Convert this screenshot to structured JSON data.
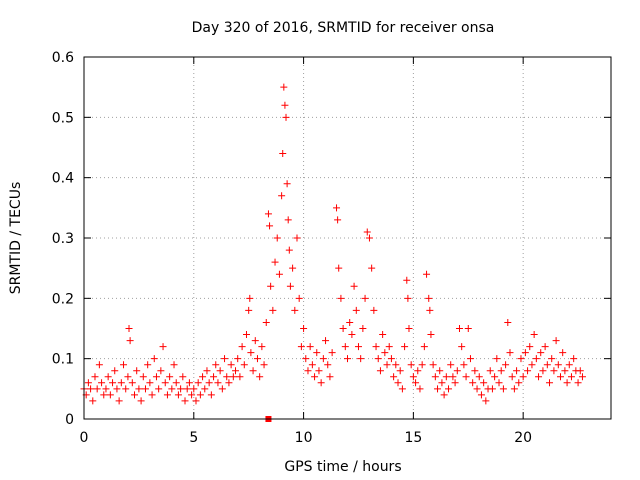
{
  "chart_data": {
    "type": "scatter",
    "title": "Day 320 of 2016, SRMTID for receiver onsa",
    "xlabel": "GPS time / hours",
    "ylabel": "SRMTID / TECUs",
    "xlim": [
      0,
      24
    ],
    "ylim": [
      0,
      0.6
    ],
    "xticks": [
      0,
      5,
      10,
      15,
      20
    ],
    "yticks": [
      0,
      0.1,
      0.2,
      0.3,
      0.4,
      0.5,
      0.6
    ],
    "xtick_labels": [
      "0",
      "5",
      "10",
      "15",
      "20"
    ],
    "ytick_labels": [
      "0",
      "0.1",
      "0.2",
      "0.3",
      "0.4",
      "0.5",
      "0.6"
    ],
    "grid": true,
    "marker": "+",
    "color": "#ff0000",
    "series": [
      {
        "name": "SRMTID",
        "points": [
          [
            0.0,
            0.05
          ],
          [
            0.1,
            0.04
          ],
          [
            0.2,
            0.06
          ],
          [
            0.3,
            0.05
          ],
          [
            0.4,
            0.03
          ],
          [
            0.5,
            0.07
          ],
          [
            0.6,
            0.05
          ],
          [
            0.7,
            0.09
          ],
          [
            0.8,
            0.06
          ],
          [
            0.9,
            0.04
          ],
          [
            1.0,
            0.05
          ],
          [
            1.1,
            0.07
          ],
          [
            1.2,
            0.04
          ],
          [
            1.3,
            0.06
          ],
          [
            1.4,
            0.08
          ],
          [
            1.5,
            0.05
          ],
          [
            1.6,
            0.03
          ],
          [
            1.7,
            0.06
          ],
          [
            1.8,
            0.09
          ],
          [
            1.9,
            0.05
          ],
          [
            2.0,
            0.07
          ],
          [
            2.05,
            0.15
          ],
          [
            2.1,
            0.13
          ],
          [
            2.2,
            0.06
          ],
          [
            2.3,
            0.04
          ],
          [
            2.4,
            0.08
          ],
          [
            2.5,
            0.05
          ],
          [
            2.6,
            0.03
          ],
          [
            2.7,
            0.07
          ],
          [
            2.8,
            0.05
          ],
          [
            2.9,
            0.09
          ],
          [
            3.0,
            0.06
          ],
          [
            3.1,
            0.04
          ],
          [
            3.2,
            0.1
          ],
          [
            3.3,
            0.07
          ],
          [
            3.4,
            0.05
          ],
          [
            3.5,
            0.08
          ],
          [
            3.6,
            0.12
          ],
          [
            3.7,
            0.06
          ],
          [
            3.8,
            0.04
          ],
          [
            3.9,
            0.07
          ],
          [
            4.0,
            0.05
          ],
          [
            4.1,
            0.09
          ],
          [
            4.2,
            0.06
          ],
          [
            4.3,
            0.04
          ],
          [
            4.4,
            0.05
          ],
          [
            4.5,
            0.07
          ],
          [
            4.6,
            0.03
          ],
          [
            4.7,
            0.05
          ],
          [
            4.8,
            0.06
          ],
          [
            4.9,
            0.04
          ],
          [
            5.0,
            0.05
          ],
          [
            5.1,
            0.03
          ],
          [
            5.2,
            0.06
          ],
          [
            5.3,
            0.04
          ],
          [
            5.4,
            0.07
          ],
          [
            5.5,
            0.05
          ],
          [
            5.6,
            0.08
          ],
          [
            5.7,
            0.06
          ],
          [
            5.8,
            0.04
          ],
          [
            5.9,
            0.07
          ],
          [
            6.0,
            0.09
          ],
          [
            6.1,
            0.06
          ],
          [
            6.2,
            0.08
          ],
          [
            6.3,
            0.05
          ],
          [
            6.4,
            0.1
          ],
          [
            6.5,
            0.07
          ],
          [
            6.6,
            0.06
          ],
          [
            6.7,
            0.09
          ],
          [
            6.8,
            0.07
          ],
          [
            6.9,
            0.08
          ],
          [
            7.0,
            0.1
          ],
          [
            7.1,
            0.07
          ],
          [
            7.2,
            0.12
          ],
          [
            7.3,
            0.09
          ],
          [
            7.4,
            0.14
          ],
          [
            7.5,
            0.18
          ],
          [
            7.55,
            0.2
          ],
          [
            7.6,
            0.11
          ],
          [
            7.7,
            0.08
          ],
          [
            7.8,
            0.13
          ],
          [
            7.9,
            0.1
          ],
          [
            8.0,
            0.07
          ],
          [
            8.1,
            0.12
          ],
          [
            8.2,
            0.09
          ],
          [
            8.3,
            0.16
          ],
          [
            8.4,
            0.34
          ],
          [
            8.45,
            0.32
          ],
          [
            8.5,
            0.22
          ],
          [
            8.6,
            0.18
          ],
          [
            8.7,
            0.26
          ],
          [
            8.8,
            0.3
          ],
          [
            8.9,
            0.24
          ],
          [
            9.0,
            0.37
          ],
          [
            9.05,
            0.44
          ],
          [
            9.1,
            0.55
          ],
          [
            9.15,
            0.52
          ],
          [
            9.2,
            0.5
          ],
          [
            9.25,
            0.39
          ],
          [
            9.3,
            0.33
          ],
          [
            9.35,
            0.28
          ],
          [
            9.4,
            0.22
          ],
          [
            9.5,
            0.25
          ],
          [
            9.6,
            0.18
          ],
          [
            9.7,
            0.3
          ],
          [
            9.8,
            0.2
          ],
          [
            9.9,
            0.12
          ],
          [
            10.0,
            0.15
          ],
          [
            10.1,
            0.1
          ],
          [
            10.2,
            0.08
          ],
          [
            10.3,
            0.12
          ],
          [
            10.4,
            0.09
          ],
          [
            10.5,
            0.07
          ],
          [
            10.6,
            0.11
          ],
          [
            10.7,
            0.08
          ],
          [
            10.8,
            0.06
          ],
          [
            10.9,
            0.1
          ],
          [
            11.0,
            0.13
          ],
          [
            11.1,
            0.09
          ],
          [
            11.2,
            0.07
          ],
          [
            11.3,
            0.11
          ],
          [
            11.5,
            0.35
          ],
          [
            11.55,
            0.33
          ],
          [
            11.6,
            0.25
          ],
          [
            11.7,
            0.2
          ],
          [
            11.8,
            0.15
          ],
          [
            11.9,
            0.12
          ],
          [
            12.0,
            0.1
          ],
          [
            12.1,
            0.16
          ],
          [
            12.2,
            0.14
          ],
          [
            12.3,
            0.22
          ],
          [
            12.4,
            0.18
          ],
          [
            12.5,
            0.12
          ],
          [
            12.6,
            0.1
          ],
          [
            12.7,
            0.15
          ],
          [
            12.8,
            0.2
          ],
          [
            12.9,
            0.31
          ],
          [
            13.0,
            0.3
          ],
          [
            13.1,
            0.25
          ],
          [
            13.2,
            0.18
          ],
          [
            13.3,
            0.12
          ],
          [
            13.4,
            0.1
          ],
          [
            13.5,
            0.08
          ],
          [
            13.6,
            0.14
          ],
          [
            13.7,
            0.11
          ],
          [
            13.8,
            0.09
          ],
          [
            13.9,
            0.12
          ],
          [
            14.0,
            0.1
          ],
          [
            14.1,
            0.07
          ],
          [
            14.2,
            0.09
          ],
          [
            14.3,
            0.06
          ],
          [
            14.4,
            0.08
          ],
          [
            14.5,
            0.05
          ],
          [
            14.6,
            0.12
          ],
          [
            14.7,
            0.23
          ],
          [
            14.75,
            0.2
          ],
          [
            14.8,
            0.15
          ],
          [
            14.9,
            0.09
          ],
          [
            15.0,
            0.07
          ],
          [
            15.1,
            0.06
          ],
          [
            15.2,
            0.08
          ],
          [
            15.3,
            0.05
          ],
          [
            15.4,
            0.09
          ],
          [
            15.5,
            0.12
          ],
          [
            15.6,
            0.24
          ],
          [
            15.7,
            0.2
          ],
          [
            15.75,
            0.18
          ],
          [
            15.8,
            0.14
          ],
          [
            15.9,
            0.09
          ],
          [
            16.0,
            0.07
          ],
          [
            16.1,
            0.05
          ],
          [
            16.2,
            0.08
          ],
          [
            16.3,
            0.06
          ],
          [
            16.4,
            0.04
          ],
          [
            16.5,
            0.07
          ],
          [
            16.6,
            0.05
          ],
          [
            16.7,
            0.09
          ],
          [
            16.8,
            0.07
          ],
          [
            16.9,
            0.06
          ],
          [
            17.0,
            0.08
          ],
          [
            17.1,
            0.15
          ],
          [
            17.2,
            0.12
          ],
          [
            17.3,
            0.09
          ],
          [
            17.4,
            0.07
          ],
          [
            17.5,
            0.15
          ],
          [
            17.6,
            0.1
          ],
          [
            17.7,
            0.06
          ],
          [
            17.8,
            0.08
          ],
          [
            17.9,
            0.05
          ],
          [
            18.0,
            0.07
          ],
          [
            18.1,
            0.04
          ],
          [
            18.2,
            0.06
          ],
          [
            18.3,
            0.03
          ],
          [
            18.4,
            0.05
          ],
          [
            18.5,
            0.08
          ],
          [
            18.6,
            0.05
          ],
          [
            18.7,
            0.07
          ],
          [
            18.8,
            0.1
          ],
          [
            18.9,
            0.06
          ],
          [
            19.0,
            0.08
          ],
          [
            19.1,
            0.05
          ],
          [
            19.2,
            0.09
          ],
          [
            19.3,
            0.16
          ],
          [
            19.4,
            0.11
          ],
          [
            19.5,
            0.07
          ],
          [
            19.6,
            0.05
          ],
          [
            19.7,
            0.08
          ],
          [
            19.8,
            0.06
          ],
          [
            19.9,
            0.1
          ],
          [
            20.0,
            0.07
          ],
          [
            20.1,
            0.11
          ],
          [
            20.2,
            0.08
          ],
          [
            20.3,
            0.12
          ],
          [
            20.4,
            0.09
          ],
          [
            20.5,
            0.14
          ],
          [
            20.6,
            0.1
          ],
          [
            20.7,
            0.07
          ],
          [
            20.8,
            0.11
          ],
          [
            20.9,
            0.08
          ],
          [
            21.0,
            0.12
          ],
          [
            21.1,
            0.09
          ],
          [
            21.2,
            0.06
          ],
          [
            21.3,
            0.1
          ],
          [
            21.4,
            0.08
          ],
          [
            21.5,
            0.13
          ],
          [
            21.6,
            0.09
          ],
          [
            21.7,
            0.07
          ],
          [
            21.8,
            0.11
          ],
          [
            21.9,
            0.08
          ],
          [
            22.0,
            0.06
          ],
          [
            22.1,
            0.09
          ],
          [
            22.2,
            0.07
          ],
          [
            22.3,
            0.1
          ],
          [
            22.4,
            0.08
          ],
          [
            22.5,
            0.06
          ],
          [
            22.6,
            0.08
          ],
          [
            22.7,
            0.07
          ]
        ]
      }
    ],
    "special_marker": {
      "x": 8.4,
      "y": 0.0,
      "shape": "square"
    }
  }
}
